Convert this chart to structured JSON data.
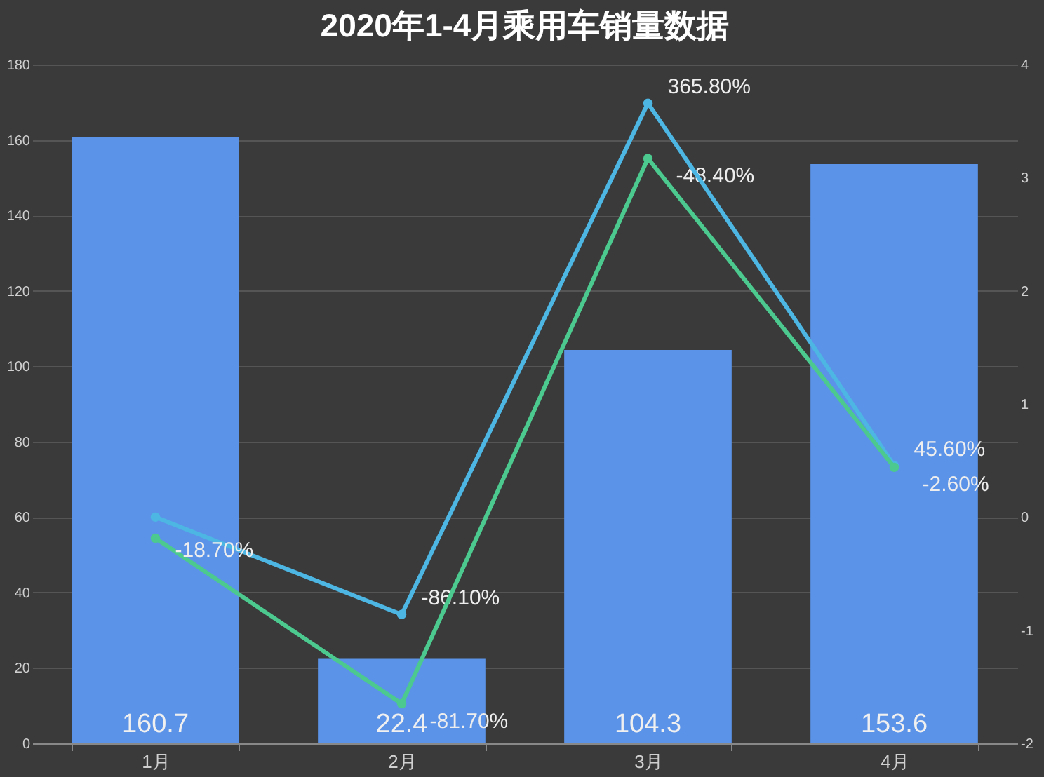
{
  "chart_data": {
    "type": "bar",
    "title": "2020年1-4月乘用车销量数据",
    "categories": [
      "1月",
      "2月",
      "3月",
      "4月"
    ],
    "series": [
      {
        "color": "#5b93e8",
        "values": [
          160.7,
          22.4,
          104.3,
          153.6
        ],
        "value_labels": [
          "160.7",
          "22.4",
          "104.3",
          "153.6"
        ]
      },
      {
        "type": "line",
        "axis": "y2",
        "color": "#4db6e2",
        "values": [
          0,
          -0.861,
          3.658,
          0.456
        ],
        "value_labels": [
          null,
          "-86.10%",
          "365.80%",
          "45.60%"
        ]
      },
      {
        "type": "line",
        "axis": "y2",
        "color": "#4cc98e",
        "values": [
          -0.187,
          -1.65,
          3.17,
          0.44
        ],
        "value_labels": [
          "-18.70%",
          null,
          null,
          null
        ]
      }
    ],
    "annotations": [
      {
        "text": "-81.70%",
        "x": "2月",
        "y": 10.5
      },
      {
        "text": "-48.40%",
        "x": "3月",
        "y": 155.1
      },
      {
        "text": "-2.60%",
        "x": "4月",
        "y": 73.2
      }
    ],
    "ylim": [
      0,
      180
    ],
    "yticks": [
      0,
      20,
      40,
      60,
      80,
      100,
      120,
      140,
      160,
      180
    ],
    "y2lim": [
      -2,
      4
    ],
    "y2ticks": [
      -2,
      -1,
      0,
      1,
      2,
      3,
      4
    ],
    "grid": "y",
    "marker": "circle",
    "line_style": "solid"
  }
}
